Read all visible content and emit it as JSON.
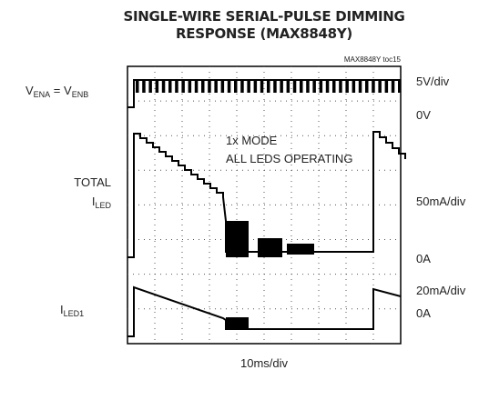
{
  "header": {
    "title_line1": "SINGLE-WIRE SERIAL-PULSE DIMMING",
    "title_line2": "RESPONSE (MAX8848Y)",
    "figure_id": "MAX8848Y toc15"
  },
  "left_labels": {
    "v_label": {
      "a": "V",
      "a_sub": "ENA",
      "b": " = V",
      "b_sub": "ENB"
    },
    "total_line1": "TOTAL",
    "total_line2": {
      "a": "I",
      "a_sub": "LED"
    },
    "iled1": {
      "a": "I",
      "a_sub": "LED1"
    }
  },
  "right_labels": [
    "5V/div",
    "0V",
    "50mA/div",
    "0A",
    "20mA/div",
    "0A"
  ],
  "annotations": [
    "1x MODE",
    "ALL LEDS OPERATING"
  ],
  "x_scale": "10ms/div"
}
